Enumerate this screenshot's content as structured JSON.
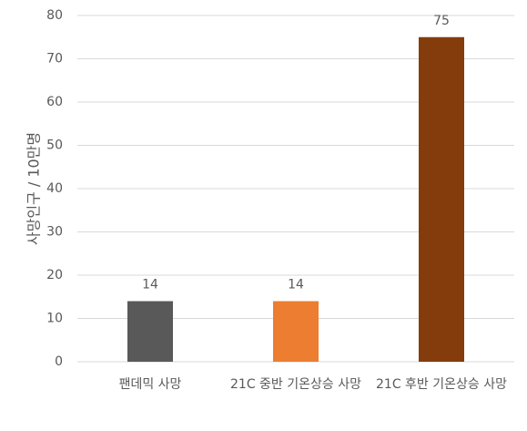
{
  "chart_data": {
    "type": "bar",
    "y_label": "사망인구 / 10만명",
    "categories": [
      "팬데믹 사망",
      "21C 중반 기온상승 사망",
      "21C 후반 기온상승 사망"
    ],
    "values": [
      14,
      14,
      75
    ],
    "colors": [
      "#595959",
      "#ed7d31",
      "#843c0c"
    ],
    "ylim": [
      0,
      80
    ],
    "yticks": [
      0,
      10,
      20,
      30,
      40,
      50,
      60,
      70,
      80
    ],
    "grid": true
  }
}
